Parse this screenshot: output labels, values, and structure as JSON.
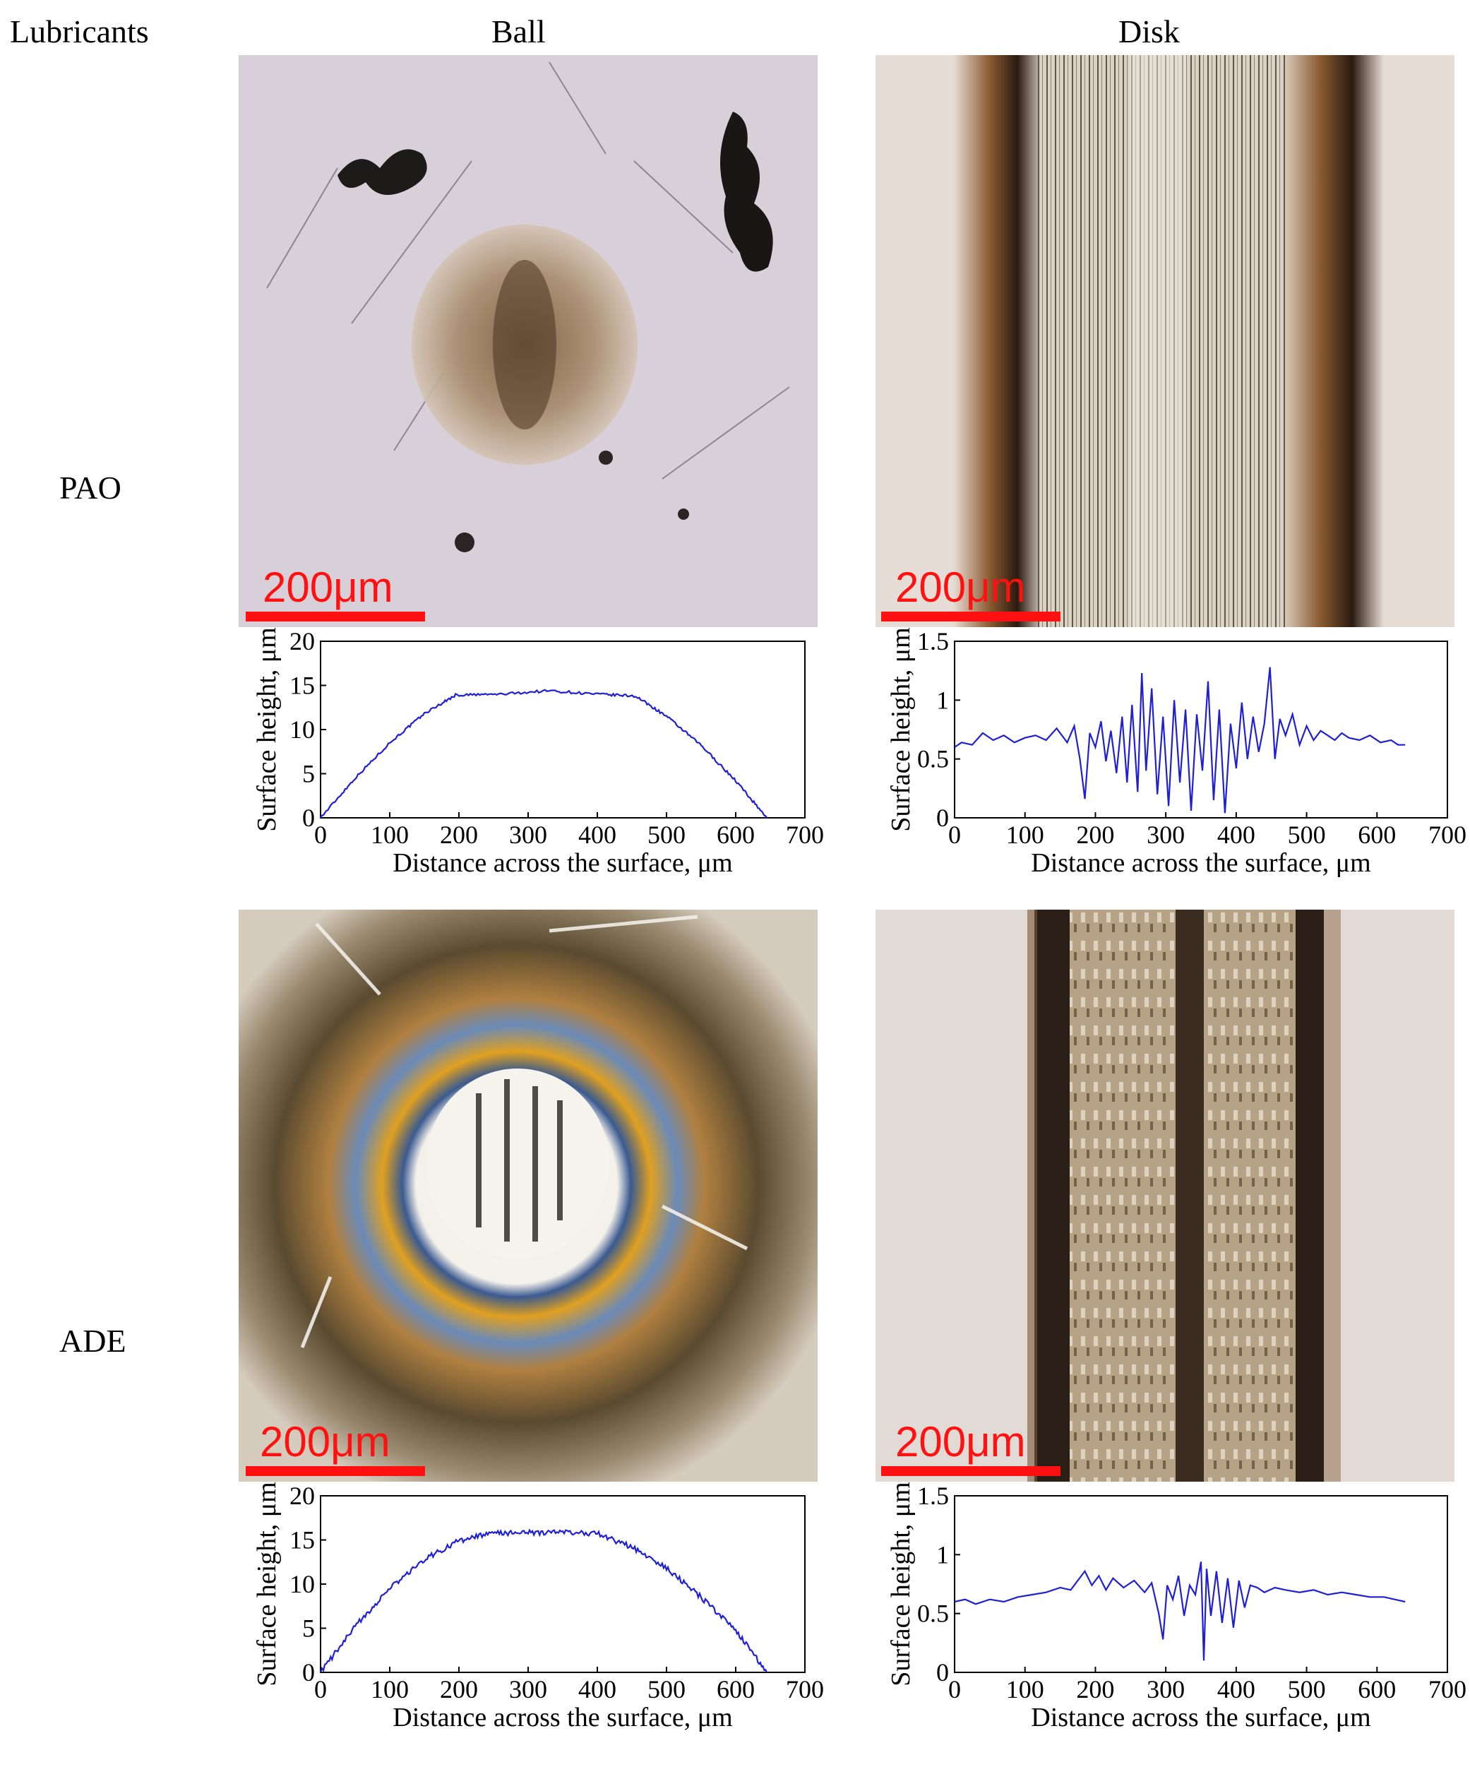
{
  "headers": {
    "lubricants": "Lubricants",
    "ball": "Ball",
    "disk": "Disk"
  },
  "rows": [
    "PAO",
    "ADE"
  ],
  "scale_bar_label": "200μm",
  "micrographs": [
    {
      "name": "pao-ball-micrograph",
      "kind": "ball-wear-scar",
      "lubricant": "PAO",
      "component": "Ball"
    },
    {
      "name": "pao-disk-micrograph",
      "kind": "disk-wear-track",
      "lubricant": "PAO",
      "component": "Disk"
    },
    {
      "name": "ade-ball-micrograph",
      "kind": "ball-wear-scar-colored",
      "lubricant": "ADE",
      "component": "Ball"
    },
    {
      "name": "ade-disk-micrograph",
      "kind": "disk-wear-track",
      "lubricant": "ADE",
      "component": "Disk"
    }
  ],
  "colors": {
    "line": "#1f1fd6",
    "scale_bar": "#ff1111"
  },
  "chart_data": [
    {
      "type": "line",
      "lubricant": "PAO",
      "component": "Ball",
      "xlabel": "Distance across the surface, μm",
      "ylabel": "Surface height, μm",
      "xlim": [
        0,
        700
      ],
      "ylim": [
        0,
        20
      ],
      "xticks": [
        0,
        100,
        200,
        300,
        400,
        500,
        600,
        700
      ],
      "yticks": [
        0,
        5,
        10,
        15,
        20
      ],
      "noise": 0.15,
      "series": [
        {
          "x": [
            0,
            50,
            100,
            150,
            195,
            260,
            330,
            400,
            455,
            500,
            550,
            600,
            645
          ],
          "y": [
            0,
            4.5,
            8.5,
            11.8,
            13.9,
            14.0,
            14.4,
            14.0,
            13.8,
            11.5,
            8.2,
            4.2,
            0
          ]
        }
      ]
    },
    {
      "type": "line",
      "lubricant": "PAO",
      "component": "Disk",
      "xlabel": "Distance across the surface, μm",
      "ylabel": "Surface height, μm",
      "xlim": [
        0,
        700
      ],
      "ylim": [
        0,
        1.5
      ],
      "xticks": [
        0,
        100,
        200,
        300,
        400,
        500,
        600,
        700
      ],
      "yticks": [
        0,
        0.5,
        1,
        1.5
      ],
      "series": [
        {
          "x": [
            0,
            10,
            25,
            40,
            55,
            70,
            85,
            100,
            115,
            130,
            145,
            160,
            170,
            178,
            185,
            192,
            200,
            208,
            215,
            222,
            230,
            238,
            245,
            252,
            260,
            266,
            272,
            280,
            288,
            296,
            304,
            312,
            320,
            328,
            336,
            344,
            352,
            360,
            368,
            376,
            384,
            392,
            400,
            408,
            416,
            424,
            432,
            440,
            448,
            455,
            462,
            470,
            480,
            490,
            500,
            510,
            520,
            530,
            540,
            550,
            560,
            575,
            590,
            605,
            620,
            630,
            640
          ],
          "y": [
            0.6,
            0.64,
            0.62,
            0.72,
            0.66,
            0.7,
            0.64,
            0.68,
            0.7,
            0.66,
            0.76,
            0.64,
            0.78,
            0.5,
            0.16,
            0.72,
            0.6,
            0.82,
            0.48,
            0.74,
            0.38,
            0.86,
            0.3,
            0.96,
            0.22,
            1.23,
            0.4,
            1.1,
            0.2,
            0.86,
            0.1,
            1.0,
            0.3,
            0.92,
            0.06,
            0.88,
            0.4,
            1.16,
            0.15,
            0.92,
            0.04,
            0.8,
            0.42,
            0.98,
            0.5,
            0.86,
            0.56,
            0.8,
            1.28,
            0.5,
            0.84,
            0.7,
            0.88,
            0.62,
            0.78,
            0.66,
            0.74,
            0.7,
            0.66,
            0.72,
            0.68,
            0.66,
            0.7,
            0.64,
            0.66,
            0.62,
            0.62
          ]
        }
      ]
    },
    {
      "type": "line",
      "lubricant": "ADE",
      "component": "Ball",
      "xlabel": "Distance across the surface, μm",
      "ylabel": "Surface height, μm",
      "xlim": [
        0,
        700
      ],
      "ylim": [
        0,
        20
      ],
      "xticks": [
        0,
        100,
        200,
        300,
        400,
        500,
        600,
        700
      ],
      "yticks": [
        0,
        5,
        10,
        15,
        20
      ],
      "noise": 0.3,
      "series": [
        {
          "x": [
            0,
            50,
            100,
            150,
            200,
            250,
            300,
            350,
            400,
            450,
            500,
            550,
            600,
            645
          ],
          "y": [
            0,
            5.2,
            9.5,
            12.8,
            14.9,
            15.8,
            15.8,
            15.9,
            15.7,
            14.2,
            11.8,
            8.5,
            4.8,
            0
          ]
        }
      ]
    },
    {
      "type": "line",
      "lubricant": "ADE",
      "component": "Disk",
      "xlabel": "Distance across the surface, μm",
      "ylabel": "Surface height, μm",
      "xlim": [
        0,
        700
      ],
      "ylim": [
        0,
        1.5
      ],
      "xticks": [
        0,
        100,
        200,
        300,
        400,
        500,
        600,
        700
      ],
      "yticks": [
        0,
        0.5,
        1,
        1.5
      ],
      "series": [
        {
          "x": [
            0,
            15,
            30,
            50,
            70,
            90,
            110,
            130,
            150,
            165,
            175,
            185,
            195,
            205,
            215,
            225,
            240,
            255,
            270,
            280,
            290,
            296,
            302,
            310,
            318,
            326,
            334,
            342,
            350,
            354,
            358,
            364,
            372,
            380,
            388,
            396,
            404,
            412,
            420,
            430,
            440,
            455,
            470,
            490,
            510,
            530,
            550,
            570,
            590,
            610,
            625,
            640
          ],
          "y": [
            0.6,
            0.62,
            0.58,
            0.62,
            0.6,
            0.64,
            0.66,
            0.68,
            0.72,
            0.7,
            0.78,
            0.86,
            0.74,
            0.82,
            0.7,
            0.8,
            0.72,
            0.78,
            0.68,
            0.76,
            0.5,
            0.28,
            0.74,
            0.62,
            0.82,
            0.48,
            0.74,
            0.66,
            0.94,
            0.1,
            0.88,
            0.48,
            0.86,
            0.42,
            0.8,
            0.38,
            0.78,
            0.55,
            0.74,
            0.72,
            0.68,
            0.72,
            0.7,
            0.68,
            0.7,
            0.66,
            0.68,
            0.66,
            0.64,
            0.64,
            0.62,
            0.6
          ]
        }
      ]
    }
  ]
}
